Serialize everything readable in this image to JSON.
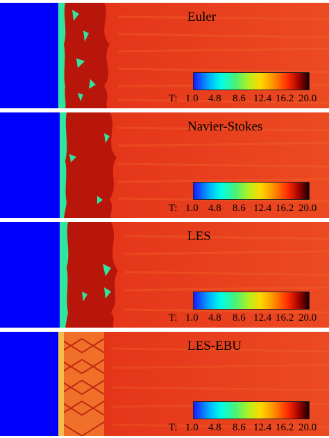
{
  "figure": {
    "colorbar": {
      "variable_label": "T:",
      "ticks": [
        "1.0",
        "4.8",
        "8.6",
        "12.4",
        "16.2",
        "20.0"
      ],
      "colors": [
        "#1a1aff",
        "#00b4ff",
        "#00ffe6",
        "#46f27a",
        "#b4f01e",
        "#ffd700",
        "#ff9a00",
        "#ff2a00",
        "#9a0000",
        "#180000"
      ]
    },
    "panels": [
      {
        "title": "Euler"
      },
      {
        "title": "Navier-Stokes"
      },
      {
        "title": "LES"
      },
      {
        "title": "LES-EBU"
      }
    ],
    "colors": {
      "unburned": "#0000ff",
      "burned": "#e83a1c",
      "front": "#2fe6a0",
      "background": "#ffffff"
    }
  }
}
